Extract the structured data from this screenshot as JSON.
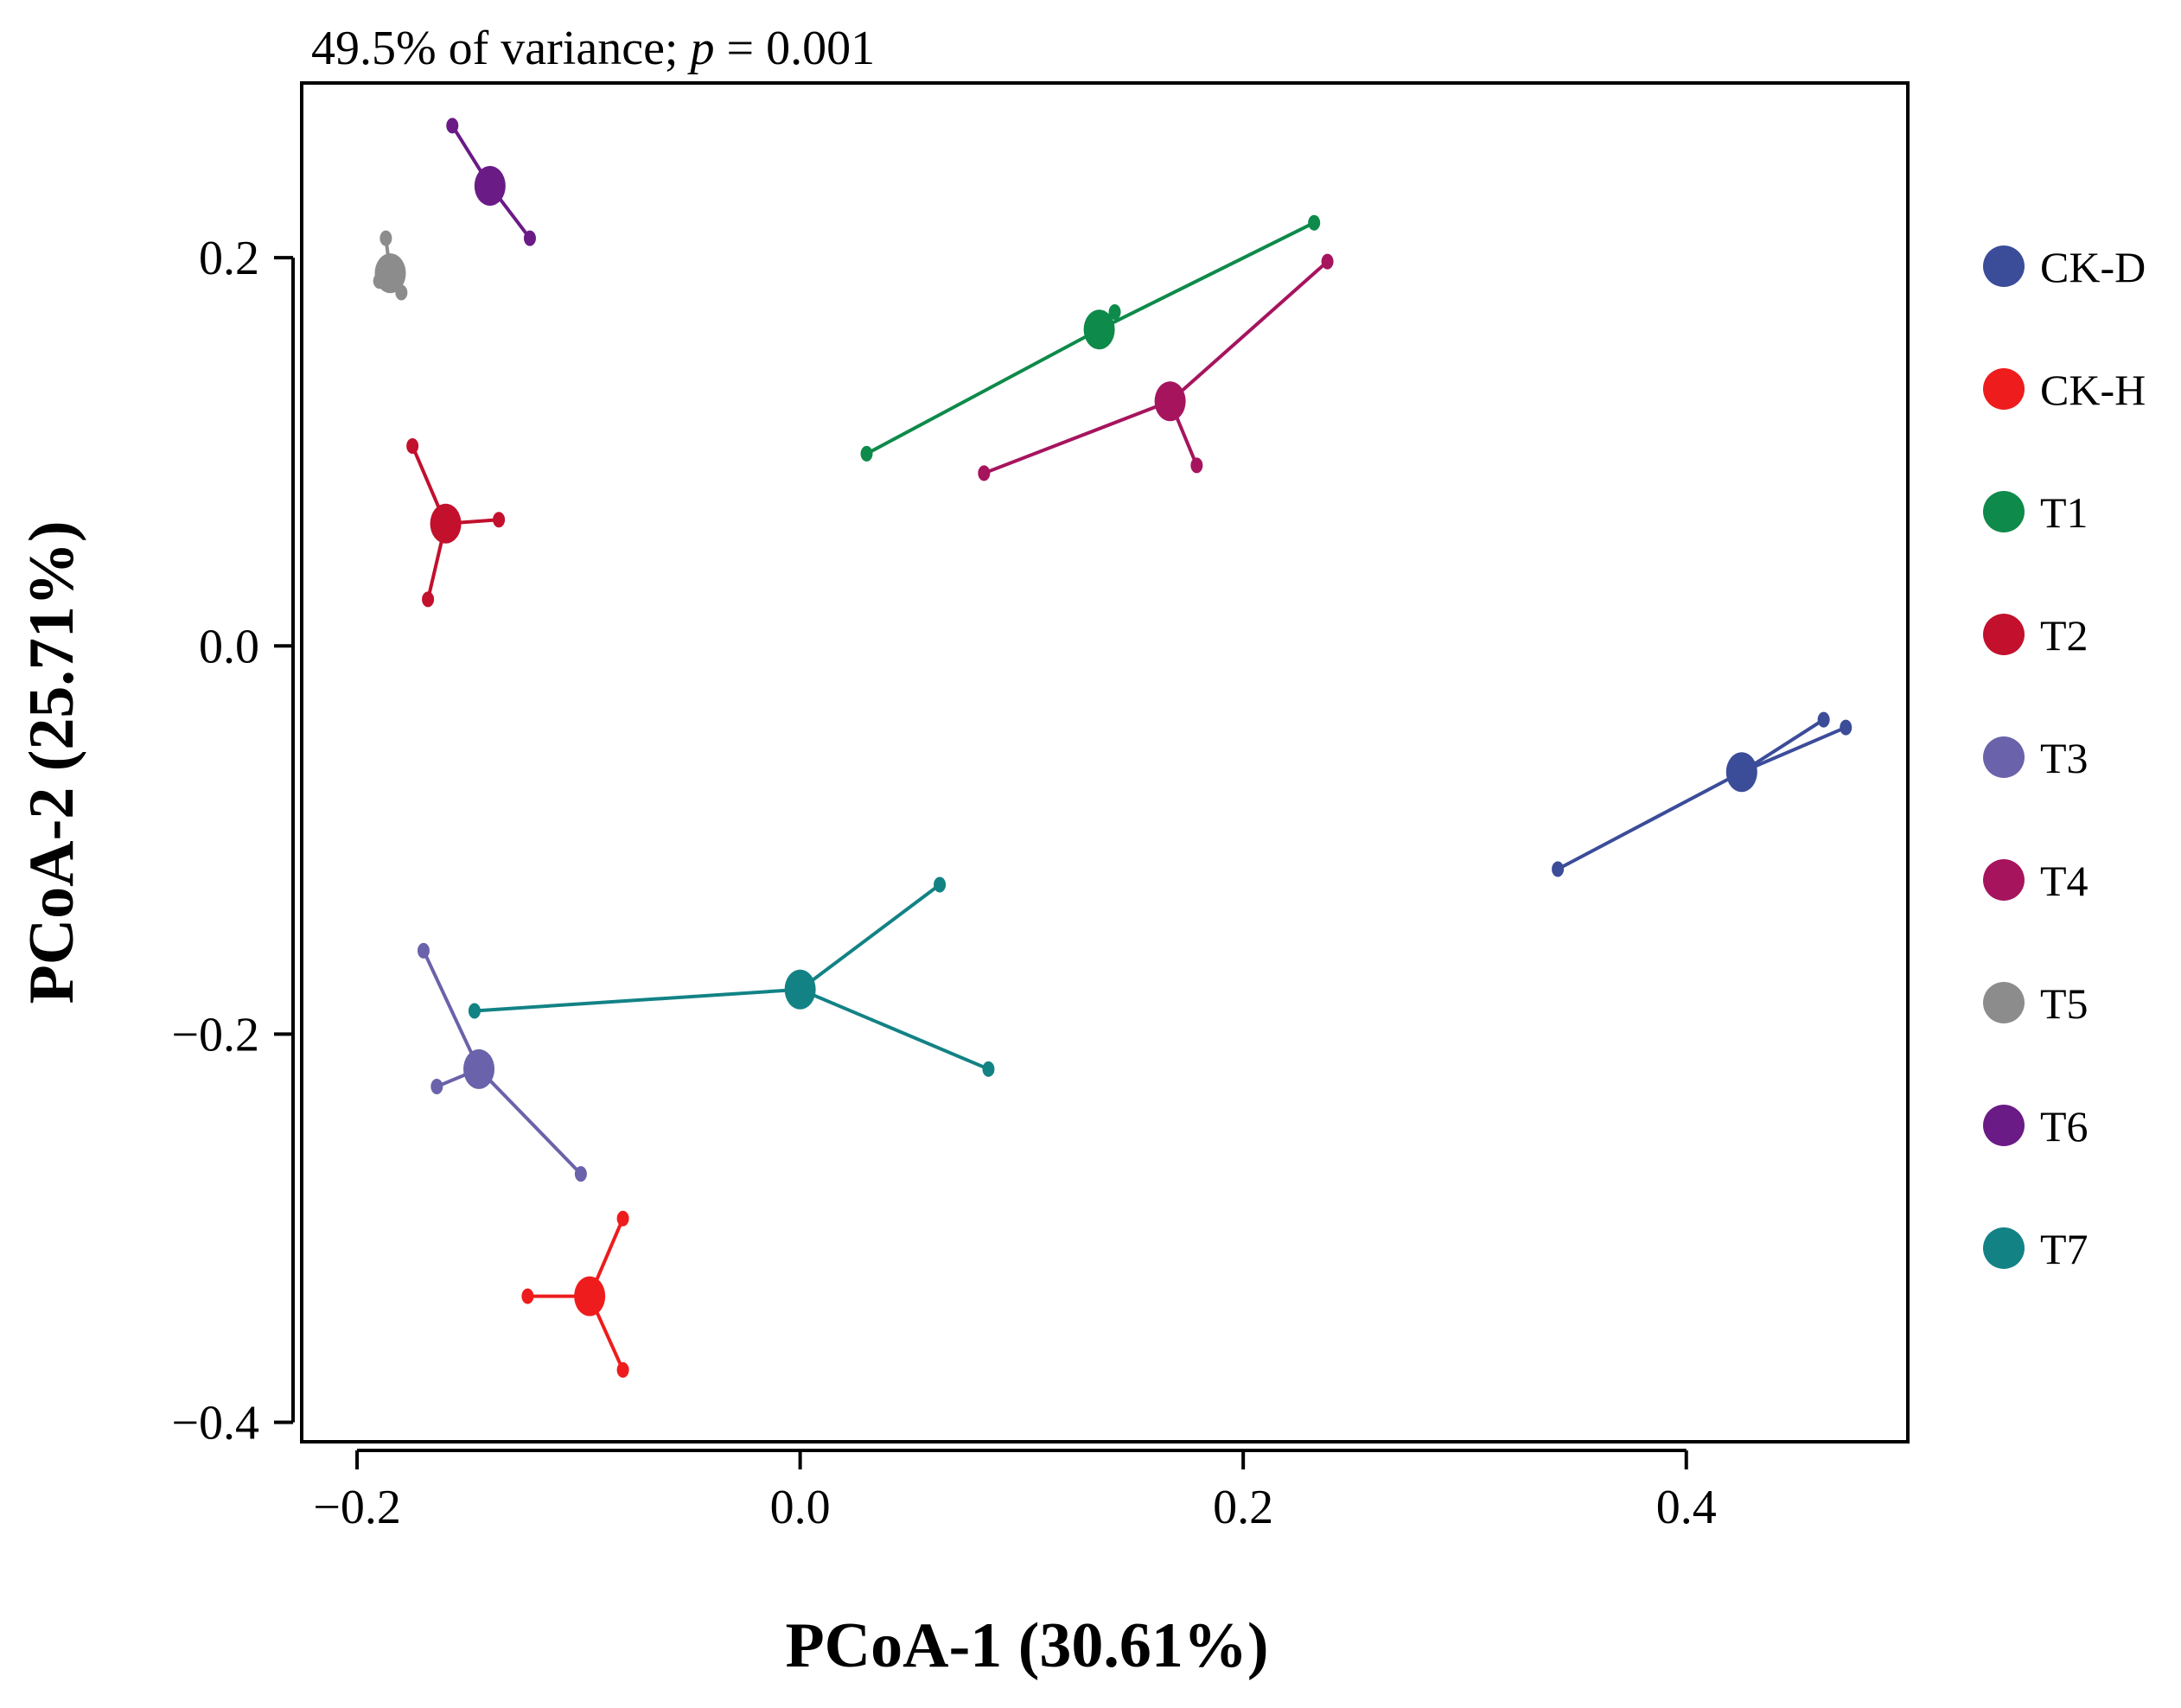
{
  "chart_data": {
    "type": "scatter",
    "subtitle_prefix": "49.5% of variance; ",
    "subtitle_p": "p",
    "subtitle_suffix": " = 0.001",
    "xlabel": "PCoA-1 (30.61%)",
    "ylabel": "PCoA-2 (25.71%)",
    "xlim": [
      -0.225,
      0.5
    ],
    "ylim": [
      -0.41,
      0.29
    ],
    "xticks": [
      -0.2,
      0.0,
      0.2,
      0.4
    ],
    "xtick_labels": [
      "−0.2",
      "0.0",
      "0.2",
      "0.4"
    ],
    "yticks": [
      -0.4,
      -0.2,
      0.0,
      0.2
    ],
    "ytick_labels": [
      "−0.4",
      "−0.2",
      "0.0",
      "0.2"
    ],
    "grid": false,
    "legend_position": "right",
    "series": [
      {
        "name": "CK-D",
        "color": "#3B4C99",
        "centroid": [
          0.425,
          -0.065
        ],
        "points": [
          [
            0.462,
            -0.038
          ],
          [
            0.472,
            -0.042
          ],
          [
            0.342,
            -0.115
          ]
        ]
      },
      {
        "name": "CK-H",
        "color": "#EE1C1C",
        "centroid": [
          -0.095,
          -0.335
        ],
        "points": [
          [
            -0.08,
            -0.295
          ],
          [
            -0.123,
            -0.335
          ],
          [
            -0.08,
            -0.373
          ]
        ]
      },
      {
        "name": "T1",
        "color": "#0E8A4A",
        "centroid": [
          0.135,
          0.163
        ],
        "points": [
          [
            0.232,
            0.218
          ],
          [
            0.142,
            0.172
          ],
          [
            0.03,
            0.099
          ]
        ]
      },
      {
        "name": "T2",
        "color": "#C2102D",
        "centroid": [
          -0.16,
          0.063
        ],
        "points": [
          [
            -0.175,
            0.103
          ],
          [
            -0.136,
            0.065
          ],
          [
            -0.168,
            0.024
          ]
        ]
      },
      {
        "name": "T3",
        "color": "#6A62AA",
        "centroid": [
          -0.145,
          -0.218
        ],
        "points": [
          [
            -0.17,
            -0.157
          ],
          [
            -0.164,
            -0.227
          ],
          [
            -0.099,
            -0.272
          ]
        ]
      },
      {
        "name": "T4",
        "color": "#A6145E",
        "centroid": [
          0.167,
          0.126
        ],
        "points": [
          [
            0.238,
            0.198
          ],
          [
            0.083,
            0.089
          ],
          [
            0.179,
            0.093
          ]
        ]
      },
      {
        "name": "T5",
        "color": "#8C8C8C",
        "centroid": [
          -0.185,
          0.192
        ],
        "points": [
          [
            -0.187,
            0.21
          ],
          [
            -0.19,
            0.188
          ],
          [
            -0.18,
            0.182
          ]
        ]
      },
      {
        "name": "T6",
        "color": "#6A1B86",
        "centroid": [
          -0.14,
          0.237
        ],
        "points": [
          [
            -0.157,
            0.268
          ],
          [
            -0.122,
            0.21
          ]
        ]
      },
      {
        "name": "T7",
        "color": "#128285",
        "centroid": [
          0.0,
          -0.177
        ],
        "points": [
          [
            0.063,
            -0.123
          ],
          [
            -0.147,
            -0.188
          ],
          [
            0.085,
            -0.218
          ]
        ]
      }
    ]
  }
}
